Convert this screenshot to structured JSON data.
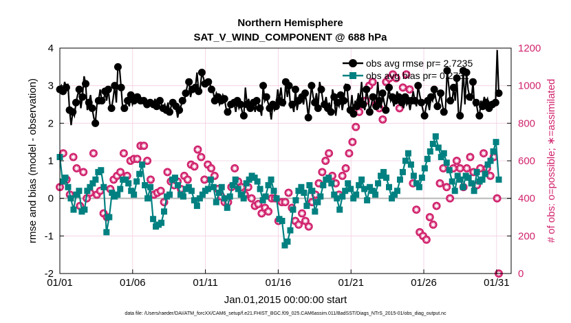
{
  "chart_data": {
    "type": "line",
    "title": "Northern Hemisphere",
    "subtitle": "SAT_V_WIND_COMPONENT @ 688 hPa",
    "xlabel": "Jan.01,2015 00:00:00 start",
    "ylabel": "rmse and bias (model - observation)",
    "ylabel_right": "# of obs: o=possible; ∗=assimilated",
    "footer": "data file: /Users/raeder/DAI/ATM_forcXX/CAM6_setup/f.e21.FHIST_BGC.f09_025.CAM6assim.011/BadSST/Diags_NTrS_2015-01/obs_diag_output.nc",
    "x_ticks": [
      "01/01",
      "01/06",
      "01/11",
      "01/16",
      "01/21",
      "01/26",
      "01/31"
    ],
    "x_tick_days": [
      1,
      6,
      11,
      16,
      21,
      26,
      31
    ],
    "xlim": [
      1,
      32
    ],
    "ylim": [
      -2,
      4
    ],
    "y_ticks": [
      "-2",
      "-1",
      "0",
      "1",
      "2",
      "3",
      "4"
    ],
    "ylim_right": [
      0,
      1200
    ],
    "y_ticks_right": [
      "0",
      "200",
      "400",
      "600",
      "800",
      "1000",
      "1200"
    ],
    "colors": {
      "rmse": "#000000",
      "bias": "#008080",
      "obs": "#d1246e",
      "zero": "#b8b8b8",
      "grid": "#f2cde0"
    },
    "legend": {
      "placement": "top-right"
    },
    "series": [
      {
        "name": "obs-avg rmse pr=",
        "legend_label": "obs avg rmse pr=  2.7235",
        "axis": "left",
        "values": [
          2.9,
          3.0,
          2.85,
          3.1,
          2.95,
          3.05,
          2.35,
          1.95,
          2.3,
          2.2,
          2.55,
          2.75,
          2.9,
          2.4,
          2.7,
          3.25,
          3.05,
          2.35,
          2.55,
          2.75,
          2.4,
          2.15,
          2.0,
          2.5,
          2.6,
          2.9,
          2.6,
          2.55,
          2.85,
          2.6,
          2.9,
          2.5,
          2.4,
          2.65,
          3.0,
          2.55,
          3.5,
          3.45,
          2.95,
          2.35,
          2.4,
          2.5,
          2.6,
          2.45,
          2.75,
          2.5,
          2.6,
          2.55,
          2.7,
          2.65,
          2.6,
          2.55,
          2.6,
          2.5,
          2.5,
          2.45,
          2.55,
          2.6,
          2.5,
          2.65,
          2.45,
          2.55,
          2.6,
          2.5,
          2.4,
          2.5,
          2.35,
          2.55,
          2.3,
          2.45,
          2.55,
          2.6,
          2.45,
          2.15,
          2.35,
          2.45,
          2.6,
          2.55,
          2.8,
          3.0,
          3.1,
          2.7,
          2.9,
          3.0,
          2.95,
          3.35,
          2.85,
          2.95,
          3.35,
          3.2,
          3.05,
          3.15,
          3.1,
          3.05,
          2.9,
          2.85,
          2.6,
          2.8,
          2.7,
          2.5,
          2.6,
          2.75,
          2.65,
          2.4,
          2.3,
          2.35,
          2.5,
          2.45,
          2.55,
          2.3,
          2.6,
          2.4,
          2.5,
          2.3,
          2.2,
          2.95,
          2.5,
          2.65,
          2.4,
          2.35,
          2.55,
          2.3,
          2.6,
          2.55,
          2.4,
          2.2,
          3.0,
          2.6,
          2.7,
          2.55,
          2.4,
          2.1,
          2.5,
          2.35,
          2.45,
          2.9,
          2.6,
          2.95,
          2.55,
          2.45,
          3.1,
          2.7,
          3.0,
          2.4,
          2.5,
          2.3,
          2.9,
          2.35,
          2.6,
          2.75,
          2.7,
          2.5,
          2.8,
          2.55,
          2.15,
          2.6,
          3.0,
          2.7,
          2.55,
          2.8,
          2.4,
          3.1,
          2.9,
          2.6,
          2.5,
          2.7,
          2.4,
          2.55,
          2.3,
          2.9,
          2.7,
          2.2,
          2.55,
          2.45,
          2.75,
          2.35,
          2.6,
          3.05,
          2.95,
          2.45,
          2.35,
          2.75,
          2.25,
          2.6,
          2.45,
          2.8,
          2.6,
          3.1,
          2.5,
          2.35,
          2.9,
          2.65,
          2.3,
          2.5,
          2.7,
          2.55,
          2.45,
          3.1,
          2.6,
          2.4,
          2.8,
          2.55,
          2.35,
          2.65,
          2.95,
          2.6,
          2.7,
          2.45,
          2.6,
          2.85,
          2.7,
          2.6,
          2.55,
          2.4,
          2.7,
          2.5,
          2.6,
          2.35,
          2.6,
          2.85,
          2.6,
          2.45,
          3.0,
          2.75,
          2.55,
          2.35,
          2.2,
          2.45,
          2.6,
          2.35,
          2.7,
          2.6,
          2.9,
          2.65,
          2.45,
          2.6,
          2.8,
          2.5,
          2.3,
          2.4,
          3.4,
          3.0,
          2.6,
          2.55,
          2.95,
          2.6,
          3.2,
          2.3,
          2.2,
          2.65,
          3.4,
          2.5,
          3.35,
          2.9,
          2.7,
          2.6,
          3.1,
          2.45,
          2.55,
          2.3,
          2.2,
          2.6,
          2.45,
          2.7,
          2.55,
          2.65,
          2.4,
          2.35,
          2.5,
          2.6,
          2.55,
          3.95,
          2.8
        ],
        "note": "values sampled every 3 hours from 01/01 to 01/31"
      },
      {
        "name": "obs-avg bias pr=",
        "legend_label": "obs avg bias pr=  0.2731",
        "axis": "left",
        "values": [
          1.1,
          0.45,
          0.55,
          0.3,
          0.0,
          -0.3,
          0.1,
          0.2,
          -0.35,
          -0.3,
          0.2,
          0.3,
          0.4,
          0.5,
          0.7,
          0.75,
          0.3,
          -0.9,
          -0.5,
          0.15,
          0.05,
          0.1,
          0.25,
          0.5,
          0.5,
          0.4,
          0.2,
          0.1,
          0.45,
          0.65,
          0.9,
          0.35,
          0.0,
          0.3,
          -0.55,
          -0.75,
          -0.7,
          -0.65,
          -0.35,
          0.05,
          0.1,
          0.5,
          0.55,
          0.35,
          0.1,
          0.05,
          0.25,
          0.3,
          0.2,
          -0.05,
          -0.2,
          0.0,
          0.1,
          0.2,
          0.25,
          0.5,
          0.3,
          -0.1,
          0.15,
          0.3,
          0.0,
          -0.25,
          0.05,
          0.35,
          0.5,
          0.25,
          0.1,
          0.0,
          0.4,
          0.5,
          0.6,
          0.55,
          0.45,
          0.25,
          -0.05,
          0.05,
          0.35,
          0.5,
          0.2,
          0.0,
          -0.55,
          -0.6,
          -1.25,
          -1.15,
          -0.85,
          -0.3,
          -0.05,
          0.2,
          0.3,
          0.15,
          -0.2,
          0.35,
          0.2,
          -0.35,
          -0.1,
          0.05,
          0.35,
          0.5,
          0.55,
          0.4,
          0.1,
          0.0,
          -0.3,
          0.05,
          0.2,
          0.4,
          0.25,
          0.0,
          0.1,
          0.35,
          0.5,
          0.25,
          -0.05,
          0.3,
          0.2,
          0.1,
          0.4,
          0.6,
          0.7,
          0.55,
          0.3,
          0.0,
          0.1,
          0.2,
          0.5,
          0.7,
          1.0,
          1.2,
          0.9,
          0.6,
          0.4,
          0.3,
          0.55,
          0.8,
          1.05,
          1.25,
          1.45,
          1.65,
          1.35,
          1.1,
          1.2,
          0.95,
          0.75,
          0.45,
          0.2,
          0.6,
          0.5,
          0.3,
          0.6,
          0.55,
          0.4,
          0.2,
          0.7,
          0.45,
          0.5,
          0.65,
          0.9,
          1.0,
          1.25,
          1.5,
          0.5
        ]
      },
      {
        "name": "# obs possible",
        "axis": "right",
        "marker": "o",
        "values": [
          460,
          560,
          640,
          580,
          500,
          380,
          420,
          380,
          620,
          600,
          560,
          400,
          360,
          540,
          540,
          470,
          400,
          540,
          430,
          390,
          640,
          410,
          420,
          370,
          440,
          380,
          320,
          330,
          300,
          310,
          450,
          430,
          500,
          520,
          520,
          460,
          540,
          500,
          640,
          590,
          520,
          580,
          600,
          660,
          610,
          590,
          610,
          660,
          680,
          680,
          680,
          560,
          600,
          540,
          500,
          430,
          420,
          390,
          430,
          420,
          440,
          380,
          380,
          380,
          540,
          560,
          490,
          510,
          470,
          450,
          490,
          520,
          450,
          480,
          520,
          440,
          500,
          560,
          580,
          560,
          570,
          620,
          660,
          640,
          620,
          600,
          500,
          560,
          580,
          640,
          560,
          540,
          520,
          500,
          450,
          420,
          410,
          400,
          380,
          340,
          380,
          400,
          460,
          530,
          560,
          520,
          490,
          470,
          460,
          420,
          420,
          440,
          460,
          400,
          400,
          360,
          360,
          350,
          370,
          380,
          320,
          360,
          350,
          380,
          330,
          380,
          400,
          360,
          400,
          220,
          280,
          310,
          380,
          350,
          380,
          400,
          430,
          380,
          350,
          300,
          280,
          290,
          260,
          300,
          320,
          300,
          280,
          260,
          250,
          320,
          380,
          460,
          420,
          380,
          480,
          520,
          540,
          580,
          600,
          620,
          640,
          560,
          520,
          500,
          480,
          440,
          420,
          460,
          520,
          480,
          560,
          600,
          640,
          620,
          700,
          740,
          780,
          820,
          860,
          880,
          900,
          880,
          920,
          960,
          1000,
          1060,
          1020,
          960,
          900,
          940,
          880,
          840,
          820,
          860,
          1020,
          1080,
          1040,
          900,
          1060,
          1000,
          1040,
          960,
          880,
          920,
          990,
          1080,
          1060,
          1040,
          980,
          920,
          480,
          400,
          340,
          280,
          220,
          180,
          200,
          230,
          180,
          210,
          300,
          200,
          260,
          180,
          360,
          420,
          480,
          520,
          560,
          500,
          460,
          420,
          400,
          520,
          560,
          620,
          600,
          580,
          560,
          500,
          460,
          500,
          560,
          580,
          620,
          600,
          540,
          500,
          470,
          520,
          560,
          580,
          640,
          620,
          560,
          460,
          520,
          600,
          620,
          440,
          400,
          0
        ]
      },
      {
        "name": "# obs assimilated",
        "axis": "right",
        "marker": "*",
        "values": [
          460,
          560,
          640,
          580,
          500,
          380,
          420,
          380,
          620,
          600,
          560,
          400,
          360,
          540,
          540,
          470,
          400,
          540,
          430,
          390,
          640,
          410,
          420,
          370,
          440,
          380,
          320,
          330,
          300,
          310,
          450,
          430,
          500,
          520,
          520,
          460,
          540,
          500,
          640,
          590,
          520,
          580,
          600,
          660,
          610,
          590,
          610,
          660,
          680,
          680,
          680,
          560,
          600,
          540,
          500,
          430,
          420,
          390,
          430,
          420,
          440,
          380,
          380,
          380,
          540,
          560,
          490,
          510,
          470,
          450,
          490,
          520,
          450,
          480,
          520,
          440,
          500,
          560,
          580,
          560,
          570,
          620,
          660,
          640,
          620,
          600,
          500,
          560,
          580,
          640,
          560,
          540,
          520,
          500,
          450,
          420,
          410,
          400,
          380,
          340,
          380,
          400,
          460,
          530,
          560,
          520,
          490,
          470,
          460,
          420,
          420,
          440,
          460,
          400,
          400,
          360,
          360,
          350,
          370,
          380,
          320,
          360,
          350,
          380,
          330,
          380,
          400,
          360,
          400,
          220,
          280,
          310,
          380,
          350,
          380,
          400,
          430,
          380,
          350,
          300,
          280,
          290,
          260,
          300,
          320,
          300,
          280,
          260,
          250,
          320,
          380,
          460,
          420,
          380,
          480,
          520,
          540,
          580,
          600,
          620,
          640,
          560,
          520,
          500,
          480,
          440,
          420,
          460,
          520,
          480,
          560,
          600,
          640,
          620,
          700,
          740,
          780,
          820,
          860,
          880,
          900,
          880,
          920,
          960,
          1000,
          1060,
          1020,
          960,
          900,
          940,
          880,
          840,
          820,
          860,
          1020,
          1080,
          1040,
          900,
          1060,
          1000,
          1040,
          960,
          880,
          920,
          990,
          1080,
          1060,
          1040,
          980,
          920,
          480,
          400,
          340,
          280,
          220,
          180,
          200,
          230,
          180,
          210,
          300,
          200,
          260,
          180,
          360,
          420,
          480,
          520,
          560,
          500,
          460,
          420,
          400,
          520,
          560,
          620,
          600,
          580,
          560,
          500,
          460,
          500,
          560,
          580,
          620,
          600,
          540,
          500,
          470,
          520,
          560,
          580,
          640,
          620,
          560,
          460,
          520,
          600,
          620,
          440,
          400,
          0
        ]
      }
    ]
  }
}
